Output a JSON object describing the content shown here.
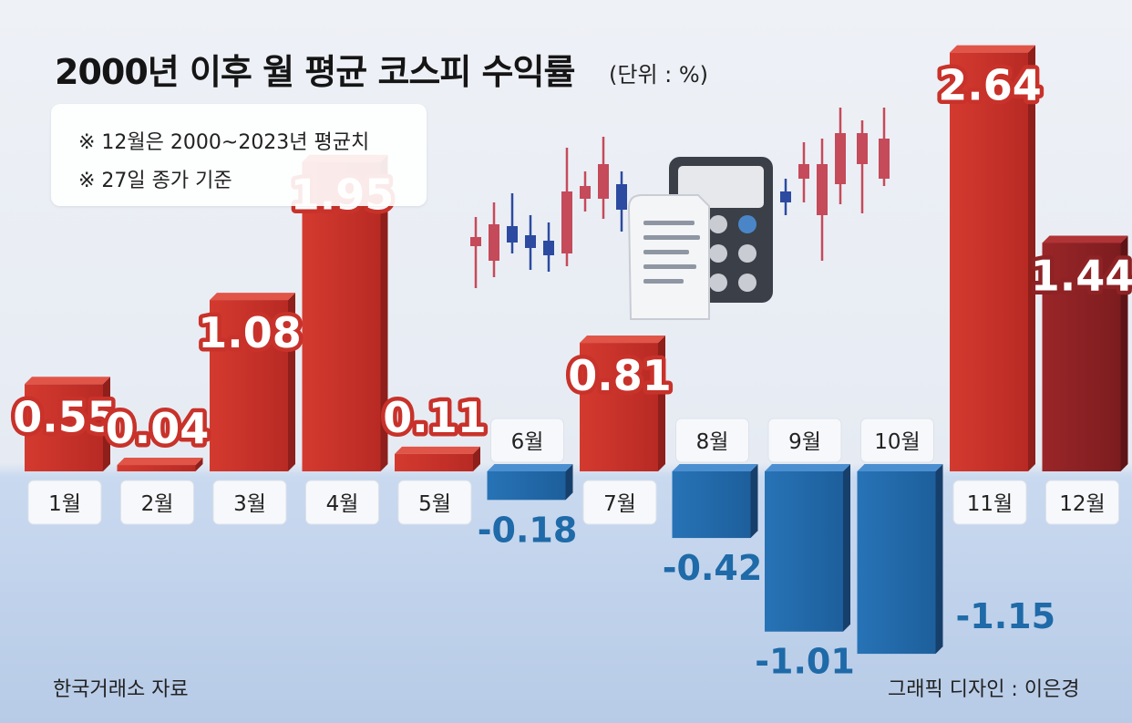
{
  "title": "2000년 이후 월 평균 코스피 수익률",
  "unit": "(단위 : %)",
  "notes": [
    "※ 12월은 2000~2023년 평균치",
    "※ 27일 종가 기준"
  ],
  "source": "한국거래소 자료",
  "credit": "그래픽 디자인 : 이은경",
  "colors": {
    "positive": "#c8322a",
    "positive_last": "#8e2224",
    "negative": "#2069a9",
    "negative_text": "#1f6aa8"
  },
  "chart_data": {
    "type": "bar",
    "title": "2000년 이후 월 평균 코스피 수익률",
    "unit": "%",
    "categories": [
      "1월",
      "2월",
      "3월",
      "4월",
      "5월",
      "6월",
      "7월",
      "8월",
      "9월",
      "10월",
      "11월",
      "12월"
    ],
    "values": [
      0.55,
      0.04,
      1.08,
      1.95,
      0.11,
      -0.18,
      0.81,
      -0.42,
      -1.01,
      -1.15,
      2.64,
      1.44
    ],
    "value_labels": [
      "0.55",
      "0.04",
      "1.08",
      "1.95",
      "0.11",
      "-0.18",
      "0.81",
      "-0.42",
      "-1.01",
      "-1.15",
      "2.64",
      "1.44"
    ],
    "ylim": [
      -1.2,
      2.7
    ],
    "grid": false,
    "legend": "none"
  }
}
